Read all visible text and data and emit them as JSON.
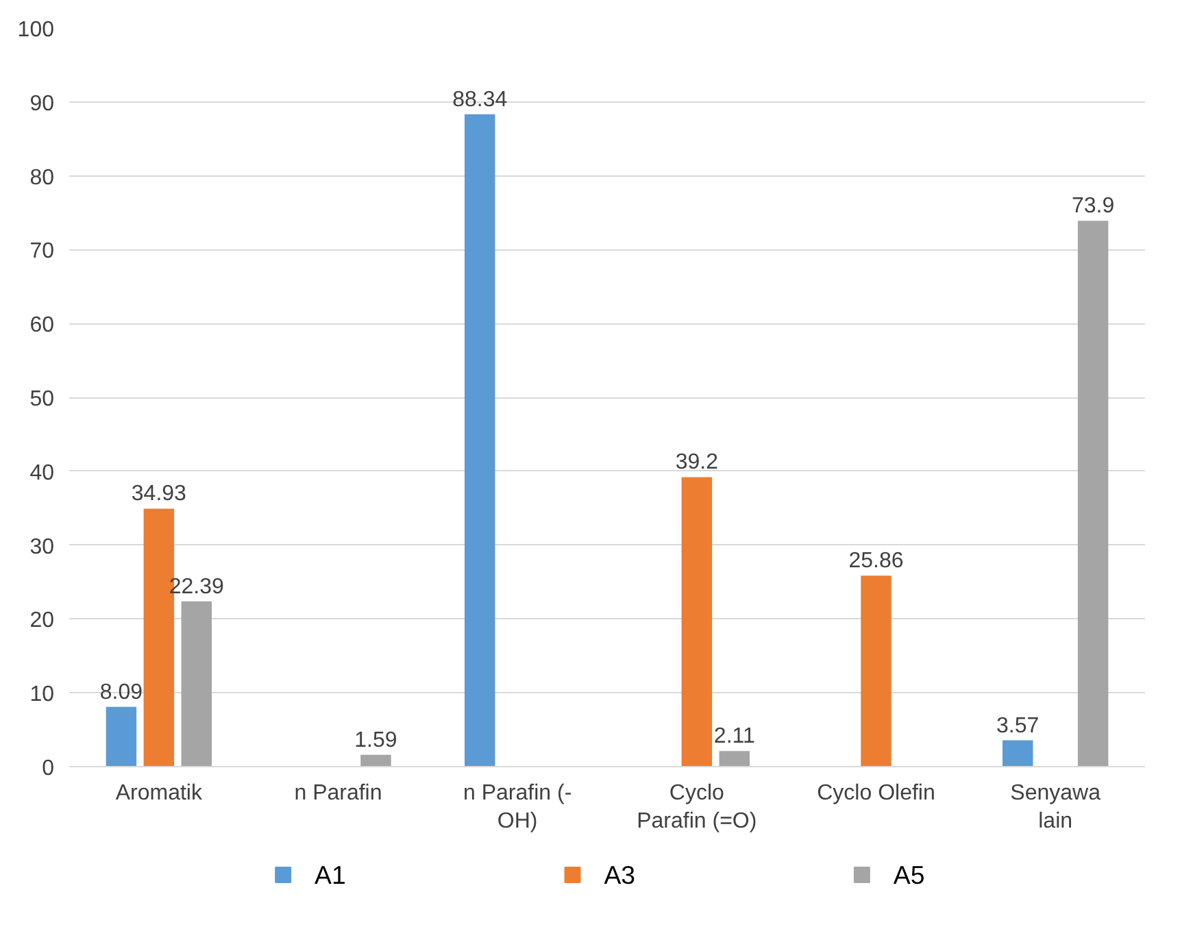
{
  "chart_data": {
    "type": "bar",
    "categories": [
      "Aromatik",
      "n Parafin",
      "n Parafin (-\nOH)",
      "Cyclo\nParafin (=O)",
      "Cyclo Olefin",
      "Senyawa\nlain"
    ],
    "series": [
      {
        "name": "A1",
        "color": "#5b9bd5",
        "values": [
          8.09,
          null,
          88.34,
          null,
          null,
          3.57
        ]
      },
      {
        "name": "A3",
        "color": "#ed7d31",
        "values": [
          34.93,
          null,
          null,
          39.2,
          25.86,
          null
        ]
      },
      {
        "name": "A5",
        "color": "#a5a5a5",
        "values": [
          22.39,
          1.59,
          null,
          2.11,
          null,
          73.9
        ]
      }
    ],
    "ylim": [
      0,
      100
    ],
    "yticks": [
      0,
      10,
      20,
      30,
      40,
      50,
      60,
      70,
      80,
      90,
      100
    ],
    "grid": "y",
    "legend": "bottom",
    "data_labels": true
  }
}
